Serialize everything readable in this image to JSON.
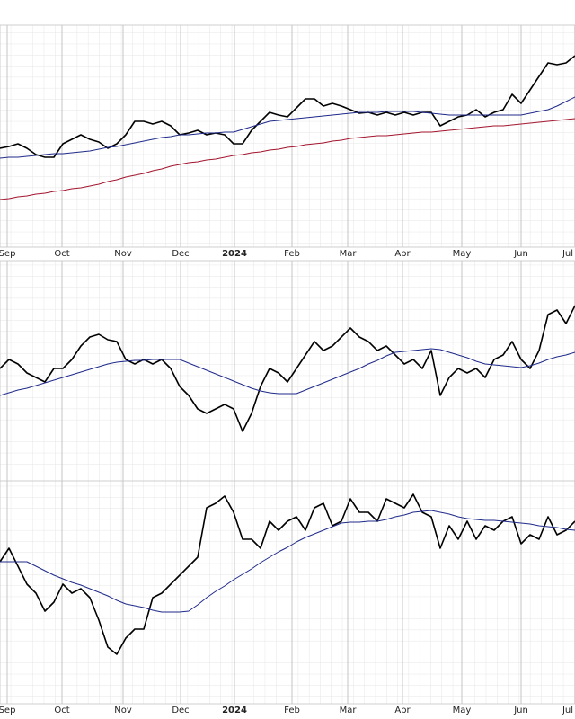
{
  "chart_data": [
    {
      "type": "line",
      "xlim": [
        0,
        64
      ],
      "ylim": [
        0,
        247
      ],
      "xticks": [
        {
          "value": 0.8,
          "label": "Sep"
        },
        {
          "value": 6.9,
          "label": "Oct"
        },
        {
          "value": 13.7,
          "label": "Nov"
        },
        {
          "value": 20.1,
          "label": "Dec"
        },
        {
          "value": 26.1,
          "label": "2024"
        },
        {
          "value": 32.5,
          "label": "Feb"
        },
        {
          "value": 38.7,
          "label": "Mar"
        },
        {
          "value": 44.8,
          "label": "Apr"
        },
        {
          "value": 51.4,
          "label": "May"
        },
        {
          "value": 58.0,
          "label": "Jun"
        },
        {
          "value": 64.0,
          "label": "Jul"
        }
      ],
      "series": [
        {
          "color": "#000000",
          "width": 1.6,
          "values": [
            110,
            112,
            115,
            110,
            103,
            100,
            100,
            115,
            120,
            125,
            120,
            117,
            110,
            115,
            125,
            140,
            140,
            137,
            140,
            135,
            125,
            127,
            130,
            125,
            127,
            125,
            115,
            115,
            130,
            140,
            150,
            147,
            145,
            155,
            165,
            165,
            157,
            160,
            157,
            153,
            149,
            150,
            147,
            150,
            147,
            150,
            147,
            150,
            150,
            135,
            140,
            145,
            147,
            153,
            145,
            150,
            153,
            170,
            160,
            175,
            190,
            205,
            203,
            205,
            213
          ]
        },
        {
          "color": "#1f2a8a",
          "width": 1,
          "values": [
            99,
            100,
            100,
            101,
            102,
            103,
            104,
            104,
            105,
            106,
            107,
            109,
            111,
            112,
            114,
            116,
            118,
            120,
            122,
            123,
            125,
            125,
            126,
            127,
            127,
            128,
            128,
            131,
            134,
            137,
            140,
            141,
            142,
            143,
            144,
            145,
            146,
            147,
            148,
            149,
            150,
            150,
            150,
            151,
            151,
            151,
            151,
            150,
            149,
            148,
            147,
            147,
            147,
            147,
            147,
            147,
            147,
            147,
            147,
            149,
            151,
            153,
            157,
            162,
            167
          ]
        },
        {
          "color": "#a3152e",
          "width": 1,
          "values": [
            53,
            54,
            56,
            57,
            59,
            60,
            62,
            63,
            65,
            66,
            68,
            70,
            73,
            75,
            78,
            80,
            82,
            85,
            87,
            90,
            92,
            94,
            95,
            97,
            98,
            100,
            102,
            103,
            105,
            106,
            108,
            109,
            111,
            112,
            114,
            115,
            116,
            118,
            119,
            121,
            122,
            123,
            124,
            124,
            125,
            126,
            127,
            128,
            128,
            129,
            130,
            131,
            132,
            133,
            134,
            135,
            135,
            136,
            137,
            138,
            139,
            140,
            141,
            142,
            143
          ]
        }
      ]
    },
    {
      "type": "line",
      "xlim": [
        0,
        64
      ],
      "ylim": [
        0,
        245
      ],
      "series": [
        {
          "color": "#000000",
          "width": 1.6,
          "values": [
            125,
            135,
            130,
            120,
            115,
            110,
            125,
            125,
            135,
            150,
            160,
            163,
            157,
            155,
            135,
            130,
            135,
            130,
            135,
            125,
            105,
            95,
            80,
            75,
            80,
            85,
            80,
            55,
            75,
            105,
            125,
            120,
            110,
            125,
            140,
            155,
            145,
            150,
            160,
            170,
            160,
            155,
            145,
            150,
            140,
            130,
            135,
            125,
            145,
            95,
            115,
            125,
            120,
            125,
            115,
            135,
            140,
            155,
            135,
            125,
            145,
            185,
            190,
            175,
            195
          ]
        },
        {
          "color": "#1f2a8a",
          "width": 1,
          "values": [
            95,
            98,
            101,
            103,
            106,
            109,
            112,
            115,
            118,
            121,
            124,
            127,
            130,
            132,
            133,
            134,
            134,
            135,
            135,
            135,
            135,
            131,
            127,
            123,
            119,
            115,
            111,
            107,
            103,
            100,
            98,
            97,
            97,
            97,
            101,
            105,
            109,
            113,
            117,
            121,
            125,
            130,
            134,
            139,
            143,
            144,
            145,
            146,
            147,
            146,
            143,
            140,
            137,
            133,
            130,
            129,
            128,
            127,
            126,
            128,
            131,
            135,
            138,
            140,
            143
          ]
        }
      ]
    },
    {
      "type": "line",
      "xlim": [
        0,
        64
      ],
      "ylim": [
        0,
        248
      ],
      "xticks": [
        {
          "value": 0.8,
          "label": "Sep"
        },
        {
          "value": 6.9,
          "label": "Oct"
        },
        {
          "value": 13.7,
          "label": "Nov"
        },
        {
          "value": 20.1,
          "label": "Dec"
        },
        {
          "value": 26.1,
          "label": "2024"
        },
        {
          "value": 32.5,
          "label": "Feb"
        },
        {
          "value": 38.7,
          "label": "Mar"
        },
        {
          "value": 44.8,
          "label": "Apr"
        },
        {
          "value": 51.4,
          "label": "May"
        },
        {
          "value": 58.0,
          "label": "Jun"
        },
        {
          "value": 64.0,
          "label": "Jul"
        }
      ],
      "series": [
        {
          "color": "#000000",
          "width": 1.6,
          "values": [
            158,
            173,
            153,
            133,
            123,
            103,
            113,
            133,
            123,
            128,
            118,
            93,
            63,
            55,
            73,
            83,
            83,
            118,
            123,
            133,
            143,
            153,
            163,
            218,
            223,
            231,
            213,
            183,
            183,
            173,
            203,
            193,
            203,
            208,
            193,
            218,
            223,
            198,
            203,
            228,
            213,
            213,
            203,
            228,
            223,
            218,
            233,
            213,
            208,
            173,
            198,
            183,
            203,
            183,
            198,
            193,
            203,
            208,
            178,
            188,
            183,
            208,
            188,
            193,
            203
          ]
        },
        {
          "color": "#1f2a8a",
          "width": 1,
          "values": [
            158,
            158,
            158,
            158,
            153,
            148,
            143,
            139,
            135,
            132,
            128,
            124,
            120,
            115,
            111,
            109,
            107,
            104,
            102,
            102,
            102,
            103,
            110,
            118,
            125,
            131,
            138,
            144,
            150,
            157,
            163,
            169,
            174,
            180,
            185,
            189,
            193,
            197,
            201,
            202,
            202,
            203,
            203,
            205,
            208,
            210,
            213,
            214,
            215,
            213,
            211,
            208,
            206,
            205,
            204,
            204,
            203,
            202,
            201,
            200,
            198,
            197,
            196,
            194,
            193
          ]
        }
      ]
    }
  ]
}
